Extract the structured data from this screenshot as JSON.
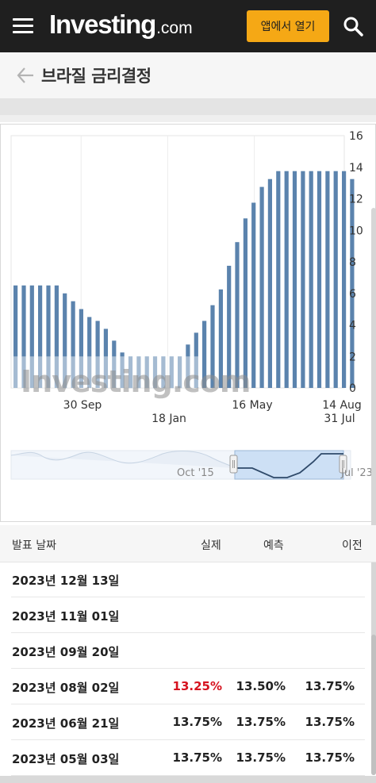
{
  "header": {
    "logo_main": "Investing",
    "logo_domain": ".com",
    "open_app_label": "앱에서 열기"
  },
  "page": {
    "title": "브라질 금리결정"
  },
  "chart_data": {
    "type": "bar",
    "watermark": "Investing.com",
    "y_ticks": [
      "0",
      "2",
      "4",
      "6",
      "8",
      "10",
      "12",
      "14",
      "16"
    ],
    "ylim": [
      0,
      16
    ],
    "x_labels_row1": [
      "30 Sep",
      "16 May",
      "14 Aug"
    ],
    "x_labels_row2": [
      "18 Jan",
      "31 Jul"
    ],
    "bar_color": "#5b83ad",
    "values": [
      6.5,
      6.5,
      6.5,
      6.5,
      6.5,
      6.5,
      6.0,
      5.5,
      5.0,
      4.5,
      4.25,
      3.75,
      3.0,
      2.25,
      2.0,
      2.0,
      2.0,
      2.0,
      2.0,
      2.0,
      2.0,
      2.75,
      3.5,
      4.25,
      5.25,
      6.25,
      7.75,
      9.25,
      10.75,
      11.75,
      12.75,
      13.25,
      13.75,
      13.75,
      13.75,
      13.75,
      13.75,
      13.75,
      13.75,
      13.75,
      13.75,
      13.25
    ],
    "navigator_labels": [
      "Oct '15",
      "Jul '23"
    ]
  },
  "table": {
    "headers": {
      "date": "발표 날짜",
      "actual": "실제",
      "forecast": "예측",
      "previous": "이전"
    },
    "rows": [
      {
        "date": "2023년 12월 13일",
        "actual": "",
        "forecast": "",
        "previous": ""
      },
      {
        "date": "2023년 11월 01일",
        "actual": "",
        "forecast": "",
        "previous": ""
      },
      {
        "date": "2023년 09월 20일",
        "actual": "",
        "forecast": "",
        "previous": ""
      },
      {
        "date": "2023년 08월 02일",
        "actual": "13.25%",
        "forecast": "13.50%",
        "previous": "13.75%"
      },
      {
        "date": "2023년 06월 21일",
        "actual": "13.75%",
        "forecast": "13.75%",
        "previous": "13.75%"
      },
      {
        "date": "2023년 05월 03일",
        "actual": "13.75%",
        "forecast": "13.75%",
        "previous": "13.75%"
      }
    ]
  }
}
